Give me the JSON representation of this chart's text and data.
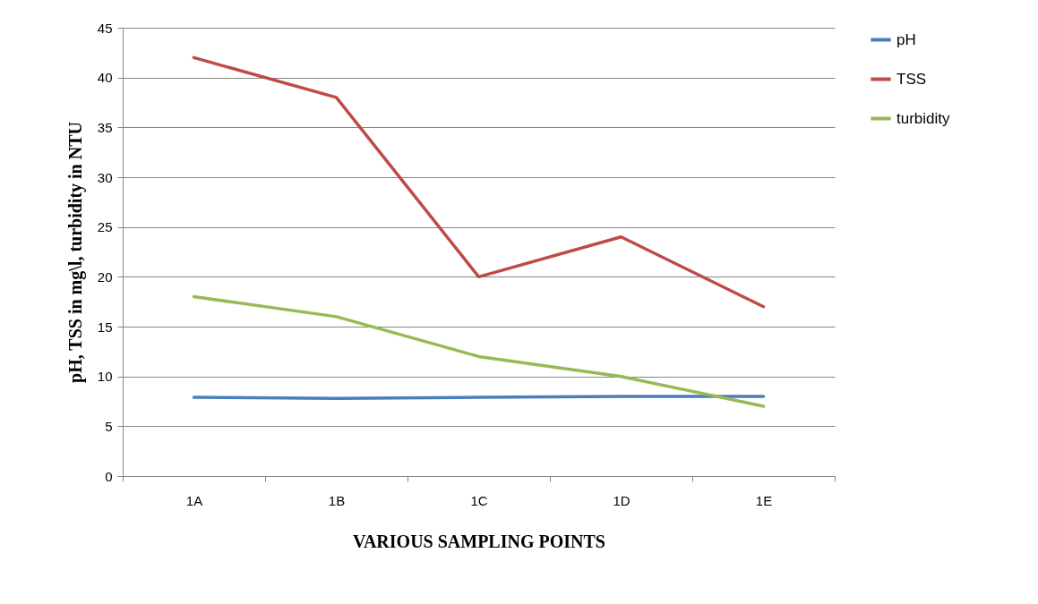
{
  "chart_data": {
    "type": "line",
    "xlabel": "VARIOUS SAMPLING POINTS",
    "ylabel": "pH, TSS in mg\\l, turbidity in NTU",
    "categories": [
      "1A",
      "1B",
      "1C",
      "1D",
      "1E"
    ],
    "series": [
      {
        "name": "pH",
        "color": "#4a7ebb",
        "values": [
          7.9,
          7.8,
          7.9,
          8.0,
          8.0
        ]
      },
      {
        "name": "TSS",
        "color": "#be4b48",
        "values": [
          42,
          38,
          20,
          24,
          17
        ]
      },
      {
        "name": "turbidity",
        "color": "#98b954",
        "values": [
          18,
          16,
          12,
          10,
          7
        ]
      }
    ],
    "ylim": [
      0,
      45
    ],
    "yticks": [
      0,
      5,
      10,
      15,
      20,
      25,
      30,
      35,
      40,
      45
    ],
    "grid": "y",
    "legend": "right",
    "marker": "none",
    "line_style": "solid"
  }
}
